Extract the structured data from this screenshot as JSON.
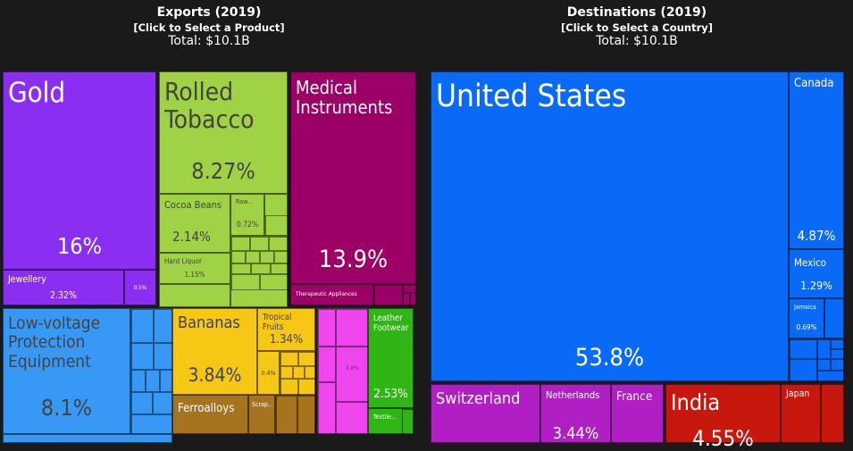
{
  "exports": {
    "title": "Exports (2019)",
    "subtitle": "[Click to Select a Product]",
    "total": "Total: $10.1B"
  },
  "destinations": {
    "title": "Destinations (2019)",
    "subtitle": "[Click to Select a Country]",
    "total": "Total: $10.1B"
  },
  "chart_data": [
    {
      "type": "treemap",
      "title": "Exports (2019)",
      "items": [
        {
          "label": "Gold",
          "value": "16%",
          "color": "#8a2ef2"
        },
        {
          "label": "Jewellery",
          "value": "2.32%",
          "color": "#8a2ef2"
        },
        {
          "label": "",
          "value": "0.5%",
          "color": "#8a2ef2"
        },
        {
          "label": "Rolled Tobacco",
          "value": "8.27%",
          "color": "#a0d246"
        },
        {
          "label": "Cocoa Beans",
          "value": "2.14%",
          "color": "#a0d246"
        },
        {
          "label": "Raw...",
          "value": "0.72%",
          "color": "#a0d246"
        },
        {
          "label": "Hard Liquor",
          "value": "1.15%",
          "color": "#a0d246"
        },
        {
          "label": "Medical Instruments",
          "value": "13.9%",
          "color": "#9c0067"
        },
        {
          "label": "Therapeutic Appliances",
          "value": "",
          "color": "#9c0067"
        },
        {
          "label": "Low-voltage Protection Equipment",
          "value": "8.1%",
          "color": "#3799f5"
        },
        {
          "label": "Bananas",
          "value": "3.84%",
          "color": "#f7c716"
        },
        {
          "label": "Tropical Fruits",
          "value": "1.34%",
          "color": "#f7c716"
        },
        {
          "label": "",
          "value": "0.4%",
          "color": "#f7c716"
        },
        {
          "label": "",
          "value": "0.8%",
          "color": "#ee45ee"
        },
        {
          "label": "Leather Footwear",
          "value": "2.53%",
          "color": "#2fb514"
        },
        {
          "label": "Textile...",
          "value": "",
          "color": "#2fb514"
        },
        {
          "label": "Ferroalloys",
          "value": "",
          "color": "#a6741e"
        },
        {
          "label": "Scrap...",
          "value": "",
          "color": "#a6741e"
        }
      ]
    },
    {
      "type": "treemap",
      "title": "Destinations (2019)",
      "items": [
        {
          "label": "United States",
          "value": "53.8%",
          "color": "#0a6af8"
        },
        {
          "label": "Canada",
          "value": "4.87%",
          "color": "#0a6af8"
        },
        {
          "label": "Mexico",
          "value": "1.29%",
          "color": "#0a6af8"
        },
        {
          "label": "Jamaica",
          "value": "0.69%",
          "color": "#0a6af8"
        },
        {
          "label": "Switzerland",
          "value": "",
          "color": "#b11fc4"
        },
        {
          "label": "Netherlands",
          "value": "3.44%",
          "color": "#b11fc4"
        },
        {
          "label": "France",
          "value": "",
          "color": "#b11fc4"
        },
        {
          "label": "India",
          "value": "4.55%",
          "color": "#c8170d"
        },
        {
          "label": "Japan",
          "value": "",
          "color": "#c8170d"
        }
      ]
    }
  ]
}
